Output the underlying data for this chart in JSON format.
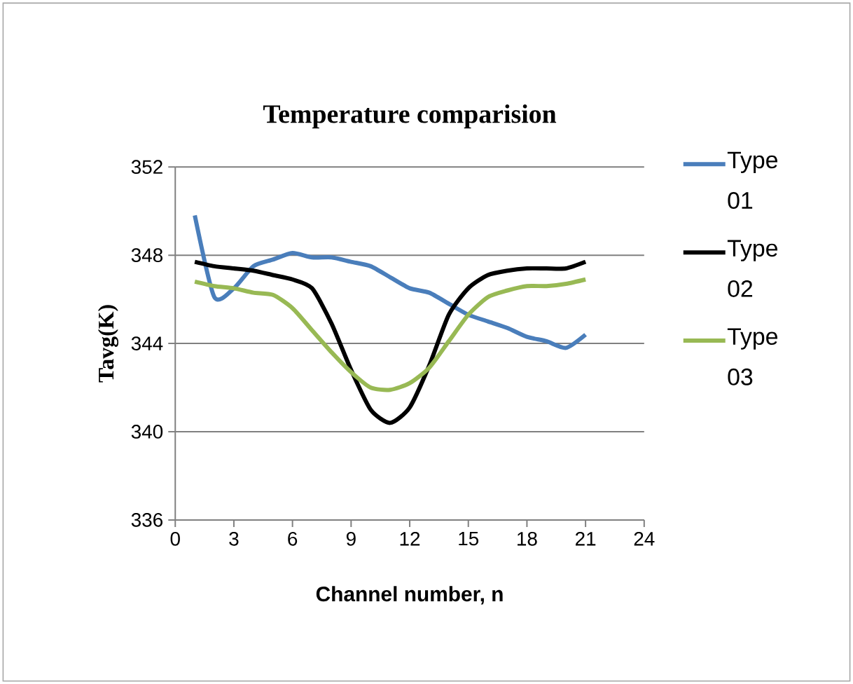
{
  "chart_data": {
    "type": "line",
    "title": "Temperature comparision",
    "xlabel": "Channel number, n",
    "ylabel": "Tavg(K)",
    "x": [
      1,
      2,
      3,
      4,
      5,
      6,
      7,
      8,
      9,
      10,
      11,
      12,
      13,
      14,
      15,
      16,
      17,
      18,
      19,
      20,
      21
    ],
    "xlim": [
      0,
      24
    ],
    "xticks": [
      0,
      3,
      6,
      9,
      12,
      15,
      18,
      21,
      24
    ],
    "ylim": [
      336,
      352
    ],
    "yticks": [
      336,
      340,
      344,
      348,
      352
    ],
    "grid": "y",
    "legend": "right",
    "marker": "none",
    "line_style": "solid",
    "series": [
      {
        "name": "Type 01",
        "color": "#4a7ebb",
        "values": [
          349.8,
          346.1,
          346.5,
          347.5,
          347.8,
          348.1,
          347.9,
          347.9,
          347.7,
          347.5,
          347.0,
          346.5,
          346.3,
          345.8,
          345.3,
          345.0,
          344.7,
          344.3,
          344.1,
          343.8,
          344.4
        ]
      },
      {
        "name": "Type 02",
        "color": "#000000",
        "values": [
          347.7,
          347.5,
          347.4,
          347.3,
          347.1,
          346.9,
          346.5,
          344.9,
          342.8,
          341.0,
          340.4,
          341.1,
          343.0,
          345.3,
          346.5,
          347.1,
          347.3,
          347.4,
          347.4,
          347.4,
          347.7
        ]
      },
      {
        "name": "Type 03",
        "color": "#98b954",
        "values": [
          346.8,
          346.6,
          346.5,
          346.3,
          346.2,
          345.6,
          344.6,
          343.6,
          342.7,
          342.0,
          341.9,
          342.2,
          342.9,
          344.1,
          345.3,
          346.1,
          346.4,
          346.6,
          346.6,
          346.7,
          346.9
        ]
      }
    ]
  }
}
